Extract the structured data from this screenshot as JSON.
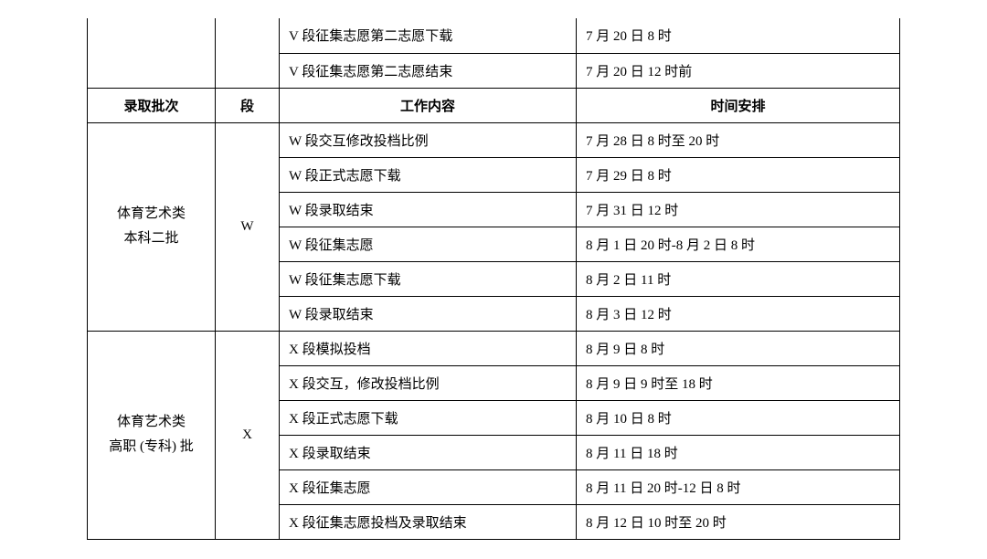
{
  "headers": {
    "batch": "录取批次",
    "segment": "段",
    "work": "工作内容",
    "time": "时间安排"
  },
  "topRows": [
    {
      "work": "V 段征集志愿第二志愿下载",
      "time": "7 月 20 日 8 时"
    },
    {
      "work": "V 段征集志愿第二志愿结束",
      "time": "7 月 20 日 12 时前"
    }
  ],
  "groups": [
    {
      "batch": "体育艺术类\n本科二批",
      "segment": "W",
      "rows": [
        {
          "work": "W 段交互修改投档比例",
          "time": "7 月 28 日 8 时至 20 时"
        },
        {
          "work": "W 段正式志愿下载",
          "time": "7 月 29 日 8 时"
        },
        {
          "work": "W 段录取结束",
          "time": "7 月 31 日 12 时"
        },
        {
          "work": "W 段征集志愿",
          "time": "8 月 1 日 20 时-8 月 2 日 8 时"
        },
        {
          "work": "W 段征集志愿下载",
          "time": "8 月 2 日 11 时"
        },
        {
          "work": "W 段录取结束",
          "time": "8 月 3 日 12 时"
        }
      ]
    },
    {
      "batch": "体育艺术类\n高职 (专科) 批",
      "segment": "X",
      "rows": [
        {
          "work": "X 段模拟投档",
          "time": "8 月 9 日 8 时"
        },
        {
          "work": "X 段交互，修改投档比例",
          "time": "8 月 9 日 9 时至 18 时"
        },
        {
          "work": "X 段正式志愿下载",
          "time": "8 月 10 日 8 时"
        },
        {
          "work": "X 段录取结束",
          "time": "8 月 11 日 18 时"
        },
        {
          "work": "X 段征集志愿",
          "time": "8 月 11 日 20 时-12 日 8 时"
        },
        {
          "work": "X 段征集志愿投档及录取结束",
          "time": "8 月 12 日 10 时至 20 时"
        }
      ]
    }
  ]
}
